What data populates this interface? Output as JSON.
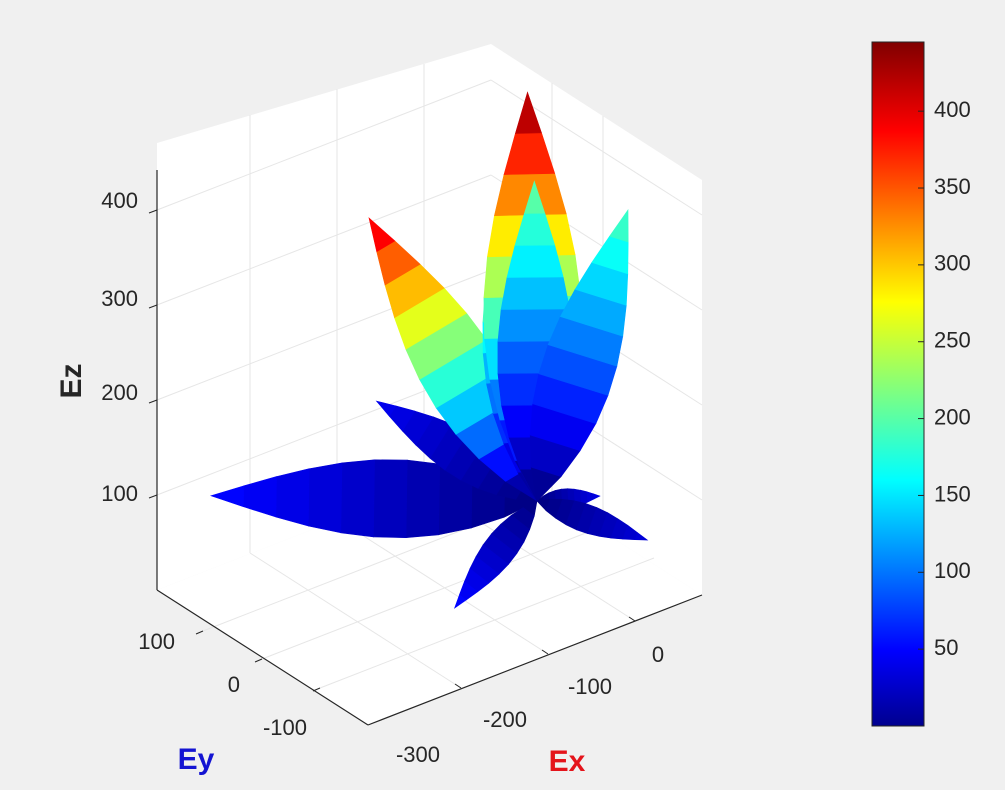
{
  "chart_data": {
    "type": "surface3d",
    "title": "",
    "xlabel": "Ex",
    "ylabel": "Ey",
    "zlabel": "Ez",
    "xlabel_color": "#e4141b",
    "ylabel_color": "#1414d2",
    "zlabel_color": "#262626",
    "x_ticks": [
      "-300",
      "-200",
      "-100",
      "0"
    ],
    "y_ticks": [
      "100",
      "0",
      "-100"
    ],
    "z_ticks": [
      "100",
      "200",
      "300",
      "400"
    ],
    "xlim": [
      -320,
      50
    ],
    "ylim": [
      -150,
      150
    ],
    "zlim": [
      0,
      440
    ],
    "grid": true,
    "colormap": "jet",
    "colorbar": {
      "placement": "right",
      "range": [
        0,
        445
      ],
      "ticks": [
        "50",
        "100",
        "150",
        "200",
        "250",
        "300",
        "350",
        "400"
      ]
    },
    "lobes": [
      {
        "name": "",
        "x": -15,
        "y": -5,
        "z": 438,
        "peak": 440
      },
      {
        "name": "",
        "x": -250,
        "y": -70,
        "z": 420,
        "peak": 410
      },
      {
        "name": "",
        "x": -25,
        "y": 20,
        "z": 320,
        "peak": 300
      },
      {
        "name": "",
        "x": 5,
        "y": 10,
        "z": 330,
        "peak": 215
      },
      {
        "name": "",
        "x": 40,
        "y": -80,
        "z": 330,
        "peak": 200
      },
      {
        "name": "",
        "x": -270,
        "y": 130,
        "z": 40,
        "peak": 60
      },
      {
        "name": "",
        "x": -200,
        "y": -130,
        "z": 20,
        "peak": 60
      },
      {
        "name": "",
        "x": -120,
        "y": 80,
        "z": 110,
        "peak": 50
      },
      {
        "name": "",
        "x": 40,
        "y": -40,
        "z": 10,
        "peak": 45
      },
      {
        "name": "",
        "x": 30,
        "y": -120,
        "z": 5,
        "peak": 40
      }
    ]
  }
}
